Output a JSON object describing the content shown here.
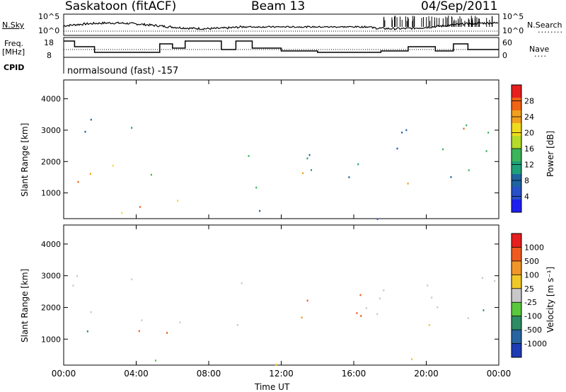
{
  "header": {
    "station": "Saskatoon (fitACF)",
    "beam": "Beam 13",
    "date": "04/Sep/2011"
  },
  "strips": {
    "nsky_label": "N.Sky",
    "nsky_ticks": [
      "10^5",
      "10^0"
    ],
    "nsearch_label": "N.Search",
    "nsearch_ticks": [
      "10^5",
      "10^0"
    ],
    "freq_label_1": "Freq.",
    "freq_label_2": "[MHz]",
    "freq_ticks": [
      "18",
      "8"
    ],
    "nave_label": "Nave",
    "nave_ticks": [
      "60",
      "0"
    ],
    "cpid_label": "CPID",
    "cpid_value": "normalsound (fast) -157"
  },
  "chart_data": [
    {
      "type": "heatmap",
      "name": "power",
      "ylabel": "Slant Range [km]",
      "yticks": [
        "1000",
        "2000",
        "3000",
        "4000"
      ],
      "ylim": [
        180,
        4600
      ],
      "colorbar_label": "Power [dB]",
      "colorbar_ticks": [
        "28",
        "24",
        "20",
        "16",
        "12",
        "8",
        "4"
      ],
      "colors": [
        "#1e1ef0",
        "#2850c8",
        "#1e64a0",
        "#1ea078",
        "#3cb45a",
        "#b4dc28",
        "#f0dc1e",
        "#f0a01e",
        "#f06414",
        "#e61e1e"
      ]
    },
    {
      "type": "heatmap",
      "name": "velocity",
      "ylabel": "Slant Range [km]",
      "yticks": [
        "1000",
        "2000",
        "3000",
        "4000"
      ],
      "ylim": [
        180,
        4600
      ],
      "xlabel": "Time UT",
      "xticks": [
        "00:00",
        "04:00",
        "08:00",
        "12:00",
        "16:00",
        "20:00",
        "00:00"
      ],
      "xlim": [
        0,
        24
      ],
      "colorbar_label": "Velocity [m s⁻¹]",
      "colorbar_ticks": [
        "1000",
        "500",
        "100",
        "25",
        "-25",
        "-100",
        "-500",
        "-1000"
      ],
      "colors": [
        "#1e3cb4",
        "#2864a0",
        "#2d8c64",
        "#5ac83c",
        "#c8c8c8",
        "#f0c828",
        "#f09628",
        "#f05a1e",
        "#e61e1e"
      ]
    }
  ]
}
